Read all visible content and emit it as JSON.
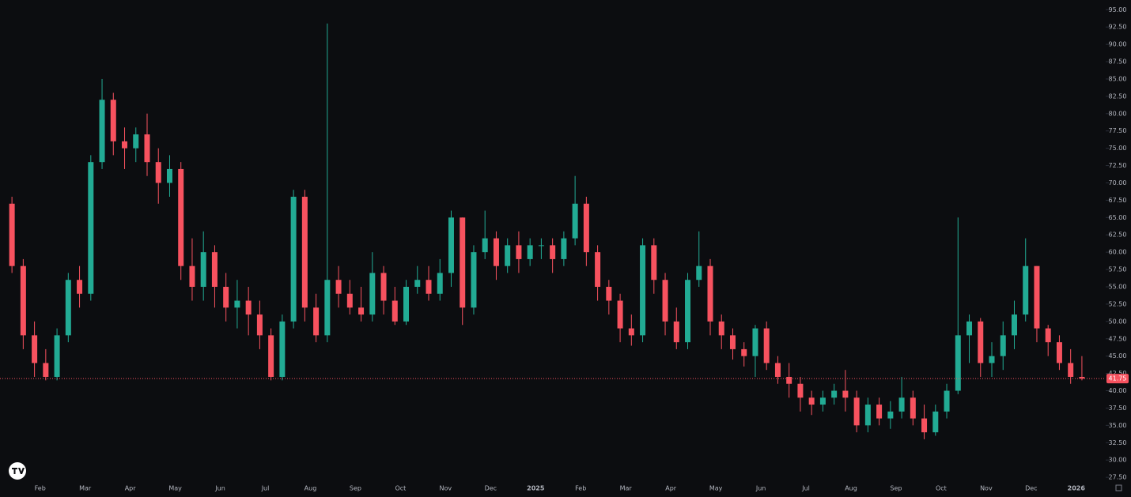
{
  "chart_data": {
    "type": "candlestick",
    "x_labels": [
      "Feb",
      "Mar",
      "Apr",
      "May",
      "Jun",
      "Jul",
      "Aug",
      "Sep",
      "Oct",
      "Nov",
      "Dec",
      "2025",
      "Feb",
      "Mar",
      "Apr",
      "May",
      "Jun",
      "Jul",
      "Aug",
      "Sep",
      "Oct",
      "Nov",
      "Dec",
      "2026"
    ],
    "open": [
      67,
      58,
      48,
      44,
      42,
      48,
      56,
      54,
      73,
      82,
      76,
      75,
      77,
      73,
      70,
      72,
      58,
      55,
      60,
      55,
      52,
      53,
      51,
      48,
      42,
      50,
      68,
      52,
      48,
      56,
      54,
      52,
      51,
      57,
      53,
      50,
      55,
      56,
      54,
      57,
      65,
      52,
      60,
      62,
      58,
      61,
      59,
      61,
      61,
      59,
      62,
      67,
      60,
      55,
      53,
      49,
      48,
      61,
      56,
      50,
      47,
      56,
      58,
      50,
      48,
      46,
      45,
      49,
      44,
      42,
      41,
      39,
      38,
      39,
      40,
      39,
      35,
      38,
      36,
      37,
      39,
      36,
      34,
      37,
      40,
      48,
      50,
      44,
      45,
      48,
      51,
      58,
      49,
      47,
      44,
      42
    ],
    "high": [
      68,
      59,
      50,
      46,
      49,
      57,
      58,
      74,
      85,
      83,
      78,
      78,
      80,
      75,
      74,
      73,
      62,
      63,
      61,
      57,
      56,
      55,
      53,
      49,
      51,
      69,
      69,
      54,
      93,
      58,
      56,
      55,
      60,
      58,
      55,
      56,
      58,
      58,
      59,
      66,
      65,
      61,
      66,
      63,
      62,
      63,
      62,
      62,
      62,
      63,
      71,
      68,
      61,
      56,
      54,
      51,
      62,
      62,
      57,
      52,
      57,
      63,
      59,
      51,
      49,
      47,
      49.5,
      50,
      45,
      44,
      42,
      40,
      40,
      41,
      43,
      40,
      39,
      39,
      38.5,
      42,
      40,
      38,
      38,
      41,
      65,
      51,
      50.5,
      47,
      50,
      53,
      62,
      58,
      49.5,
      48,
      46,
      45
    ],
    "low": [
      57,
      46,
      42,
      41.5,
      41.5,
      47,
      52,
      53,
      72,
      74,
      72,
      73,
      71,
      67,
      68,
      56,
      53,
      53,
      52,
      50,
      49,
      48,
      46,
      41.5,
      41.5,
      49,
      50,
      47,
      47,
      52,
      51,
      50,
      50,
      51,
      49.5,
      49.5,
      54,
      53,
      53,
      55,
      49.5,
      51,
      59,
      56,
      57,
      57,
      58,
      59,
      57,
      58,
      61,
      58,
      53,
      51,
      47,
      46.5,
      47,
      54,
      48,
      46,
      46,
      55,
      48,
      46,
      44.5,
      43.5,
      42,
      43,
      41,
      39,
      37,
      36.5,
      37,
      38,
      37,
      34,
      34,
      35,
      34.5,
      36,
      35,
      33,
      33.5,
      36,
      39.5,
      44,
      42,
      42,
      43,
      46,
      50,
      47,
      45,
      43,
      41,
      41.5
    ],
    "close": [
      58,
      48,
      44,
      42,
      48,
      56,
      54,
      73,
      82,
      76,
      75,
      77,
      73,
      70,
      72,
      58,
      55,
      60,
      55,
      52,
      53,
      51,
      48,
      42,
      50,
      68,
      52,
      48,
      56,
      54,
      52,
      51,
      57,
      53,
      50,
      55,
      56,
      54,
      57,
      65,
      52,
      60,
      62,
      58,
      61,
      59,
      61,
      61,
      59,
      62,
      67,
      60,
      55,
      53,
      49,
      48,
      61,
      56,
      50,
      47,
      56,
      58,
      50,
      48,
      46,
      45,
      49,
      44,
      42,
      41,
      39,
      38,
      39,
      40,
      39,
      35,
      38,
      36,
      37,
      39,
      36,
      34,
      37,
      40,
      48,
      50,
      44,
      45,
      48,
      51,
      58,
      49,
      47,
      44,
      42,
      41.75
    ],
    "up_color": "#22ab94",
    "down_color": "#f7525f",
    "ylim": [
      26.6,
      96.4
    ],
    "yticks": [
      {
        "value": 27.5,
        "label": "27.50"
      },
      {
        "value": 30,
        "label": "30.00"
      },
      {
        "value": 32.5,
        "label": "32.50"
      },
      {
        "value": 35,
        "label": "35.00"
      },
      {
        "value": 37.5,
        "label": "37.50"
      },
      {
        "value": 40,
        "label": "40.00"
      },
      {
        "value": 42.5,
        "label": "42.50"
      },
      {
        "value": 45,
        "label": "45.00"
      },
      {
        "value": 47.5,
        "label": "47.50"
      },
      {
        "value": 50,
        "label": "50.00"
      },
      {
        "value": 52.5,
        "label": "52.50"
      },
      {
        "value": 55,
        "label": "55.00"
      },
      {
        "value": 57.5,
        "label": "57.50"
      },
      {
        "value": 60,
        "label": "60.00"
      },
      {
        "value": 62.5,
        "label": "62.50"
      },
      {
        "value": 65,
        "label": "65.00"
      },
      {
        "value": 67.5,
        "label": "67.50"
      },
      {
        "value": 70,
        "label": "70.00"
      },
      {
        "value": 72.5,
        "label": "72.50"
      },
      {
        "value": 75,
        "label": "75.00"
      },
      {
        "value": 77.5,
        "label": "77.50"
      },
      {
        "value": 80,
        "label": "80.00"
      },
      {
        "value": 82.5,
        "label": "82.50"
      },
      {
        "value": 85,
        "label": "85.00"
      },
      {
        "value": 87.5,
        "label": "87.50"
      },
      {
        "value": 90,
        "label": "90.00"
      },
      {
        "value": 92.5,
        "label": "92.50"
      },
      {
        "value": 95,
        "label": "95.00"
      }
    ],
    "last_price": {
      "value": 41.75,
      "label": "41.75"
    }
  }
}
